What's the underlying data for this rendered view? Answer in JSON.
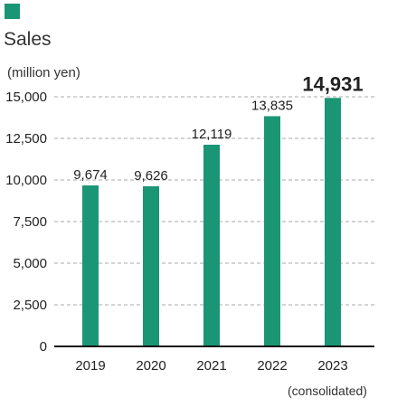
{
  "chart_data": {
    "type": "bar",
    "title": "Sales",
    "ylabel": "(million yen)",
    "note": "(consolidated)",
    "categories": [
      "2019",
      "2020",
      "2021",
      "2022",
      "2023"
    ],
    "values": [
      9674,
      9626,
      12119,
      13835,
      14931
    ],
    "value_labels": [
      "9,674",
      "9,626",
      "12,119",
      "13,835",
      "14,931"
    ],
    "highlight_index": 4,
    "ylim": [
      0,
      15000
    ],
    "yticks": [
      0,
      2500,
      5000,
      7500,
      10000,
      12500,
      15000
    ],
    "ytick_labels": [
      "0",
      "2,500",
      "5,000",
      "7,500",
      "10,000",
      "12,500",
      "15,000"
    ],
    "grid": true,
    "colors": {
      "bar": "#1b9674",
      "grid": "#aaaaaa",
      "axis": "#111111"
    }
  }
}
